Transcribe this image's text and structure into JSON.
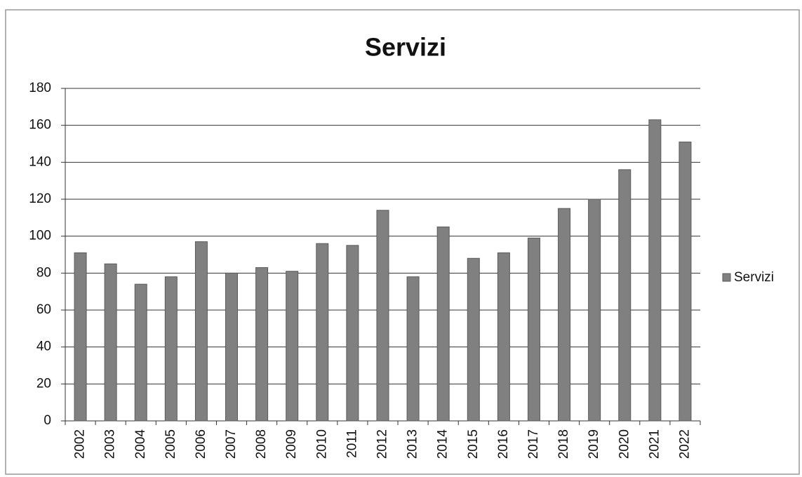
{
  "chart_data": {
    "type": "bar",
    "title": "Servizi",
    "categories": [
      "2002",
      "2003",
      "2004",
      "2005",
      "2006",
      "2007",
      "2008",
      "2009",
      "2010",
      "2011",
      "2012",
      "2013",
      "2014",
      "2015",
      "2016",
      "2017",
      "2018",
      "2019",
      "2020",
      "2021",
      "2022"
    ],
    "series": [
      {
        "name": "Servizi",
        "color": "#808080",
        "values": [
          91,
          85,
          74,
          78,
          97,
          80,
          83,
          81,
          96,
          95,
          114,
          78,
          105,
          88,
          91,
          99,
          115,
          120,
          136,
          163,
          151
        ]
      }
    ],
    "ylim": [
      0,
      180
    ],
    "yticks": [
      0,
      20,
      40,
      60,
      80,
      100,
      120,
      140,
      160,
      180
    ],
    "grid": true,
    "legend": "right"
  }
}
